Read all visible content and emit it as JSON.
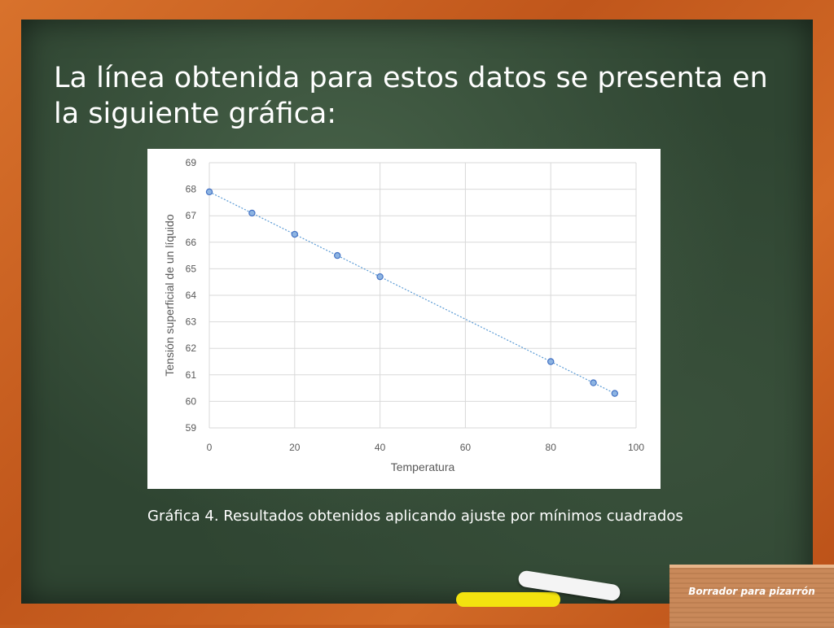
{
  "slide": {
    "title": "La línea obtenida para estos datos se presenta en la siguiente gráfica:",
    "caption": "Gráfica 4. Resultados obtenidos aplicando ajuste por mínimos cuadrados",
    "eraser_label": "Borrador para pizarrón"
  },
  "colors": {
    "marker_fill": "#8db4e2",
    "marker_stroke": "#4472c4",
    "trend_line": "#5b9bd5",
    "grid": "#d9d9d9"
  },
  "chart_data": {
    "type": "scatter",
    "title": "",
    "xlabel": "Temperatura",
    "ylabel": "Tensión superficial de un líquido",
    "xlim": [
      0,
      100
    ],
    "ylim": [
      59,
      69
    ],
    "x_ticks": [
      "0",
      "20",
      "40",
      "60",
      "80",
      "100"
    ],
    "y_ticks": [
      "59",
      "60",
      "61",
      "62",
      "63",
      "64",
      "65",
      "66",
      "67",
      "68",
      "69"
    ],
    "grid": true,
    "legend": "none",
    "trendline": "linear",
    "x": [
      0,
      10,
      20,
      30,
      40,
      80,
      90,
      95
    ],
    "y": [
      67.9,
      67.1,
      66.3,
      65.5,
      64.7,
      61.5,
      60.7,
      60.3
    ]
  }
}
